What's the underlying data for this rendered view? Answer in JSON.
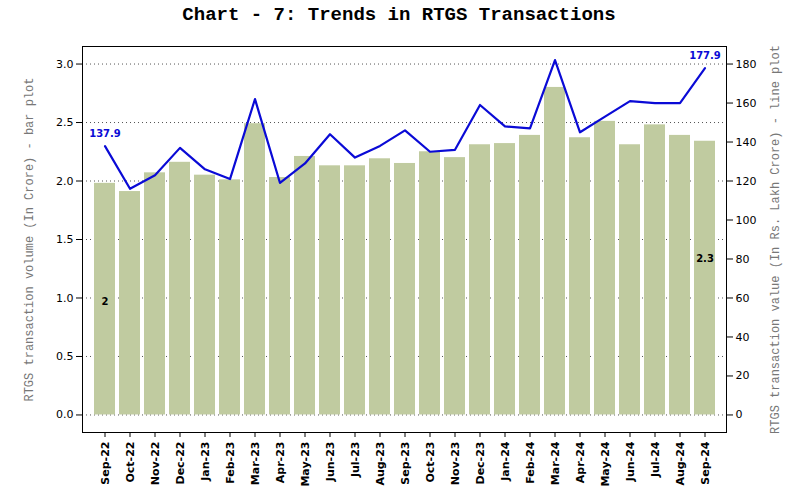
{
  "chart_data": {
    "type": "bar",
    "title": "Chart - 7: Trends in RTGS Transactions",
    "categories": [
      "Sep-22",
      "Oct-22",
      "Nov-22",
      "Dec-22",
      "Jan-23",
      "Feb-23",
      "Mar-23",
      "Apr-23",
      "May-23",
      "Jun-23",
      "Jul-23",
      "Aug-23",
      "Sep-23",
      "Oct-23",
      "Nov-23",
      "Dec-23",
      "Jan-24",
      "Feb-24",
      "Mar-24",
      "Apr-24",
      "May-24",
      "Jun-24",
      "Jul-24",
      "Aug-24",
      "Sep-24"
    ],
    "ylabel": "RTGS transaction volume (In Crore) - bar plot",
    "y2label": "RTGS transaction value (In Rs. Lakh Crore) - line plot",
    "ylim": [
      -0.15,
      3.15
    ],
    "yticks": [
      {
        "value": 0,
        "label": "0.0"
      },
      {
        "value": 0.5,
        "label": "0.5"
      },
      {
        "value": 1,
        "label": "1.0"
      },
      {
        "value": 1.5,
        "label": "1.5"
      },
      {
        "value": 2,
        "label": "2.0"
      },
      {
        "value": 2.5,
        "label": "2.5"
      },
      {
        "value": 3,
        "label": "3.0"
      }
    ],
    "y2lim": [
      -9,
      189
    ],
    "y2ticks": [
      0,
      20,
      40,
      60,
      80,
      100,
      120,
      140,
      160,
      180
    ],
    "grid": true,
    "series": [
      {
        "type": "bar",
        "color": "#c0cba0",
        "values": [
          1.98,
          1.91,
          2.07,
          2.16,
          2.05,
          2.01,
          2.49,
          2.03,
          2.21,
          2.13,
          2.13,
          2.19,
          2.15,
          2.25,
          2.2,
          2.31,
          2.32,
          2.39,
          2.8,
          2.37,
          2.51,
          2.31,
          2.48,
          2.39,
          2.34
        ],
        "value_labels": [
          "2",
          null,
          null,
          null,
          null,
          null,
          null,
          null,
          null,
          null,
          null,
          null,
          null,
          null,
          null,
          null,
          null,
          null,
          null,
          null,
          null,
          null,
          null,
          null,
          "2.3"
        ]
      },
      {
        "type": "line",
        "color": "#0a0ad6",
        "axis": "y2",
        "values": [
          137.9,
          116,
          123,
          137,
          126,
          121,
          162,
          119,
          129,
          144,
          132,
          138,
          146,
          135,
          136,
          159,
          148,
          147,
          182,
          145,
          153,
          161,
          160,
          160,
          177.9
        ],
        "value_labels": [
          "137.9",
          null,
          null,
          null,
          null,
          null,
          null,
          null,
          null,
          null,
          null,
          null,
          null,
          null,
          null,
          null,
          null,
          null,
          null,
          null,
          null,
          null,
          null,
          null,
          "177.9"
        ]
      }
    ]
  }
}
